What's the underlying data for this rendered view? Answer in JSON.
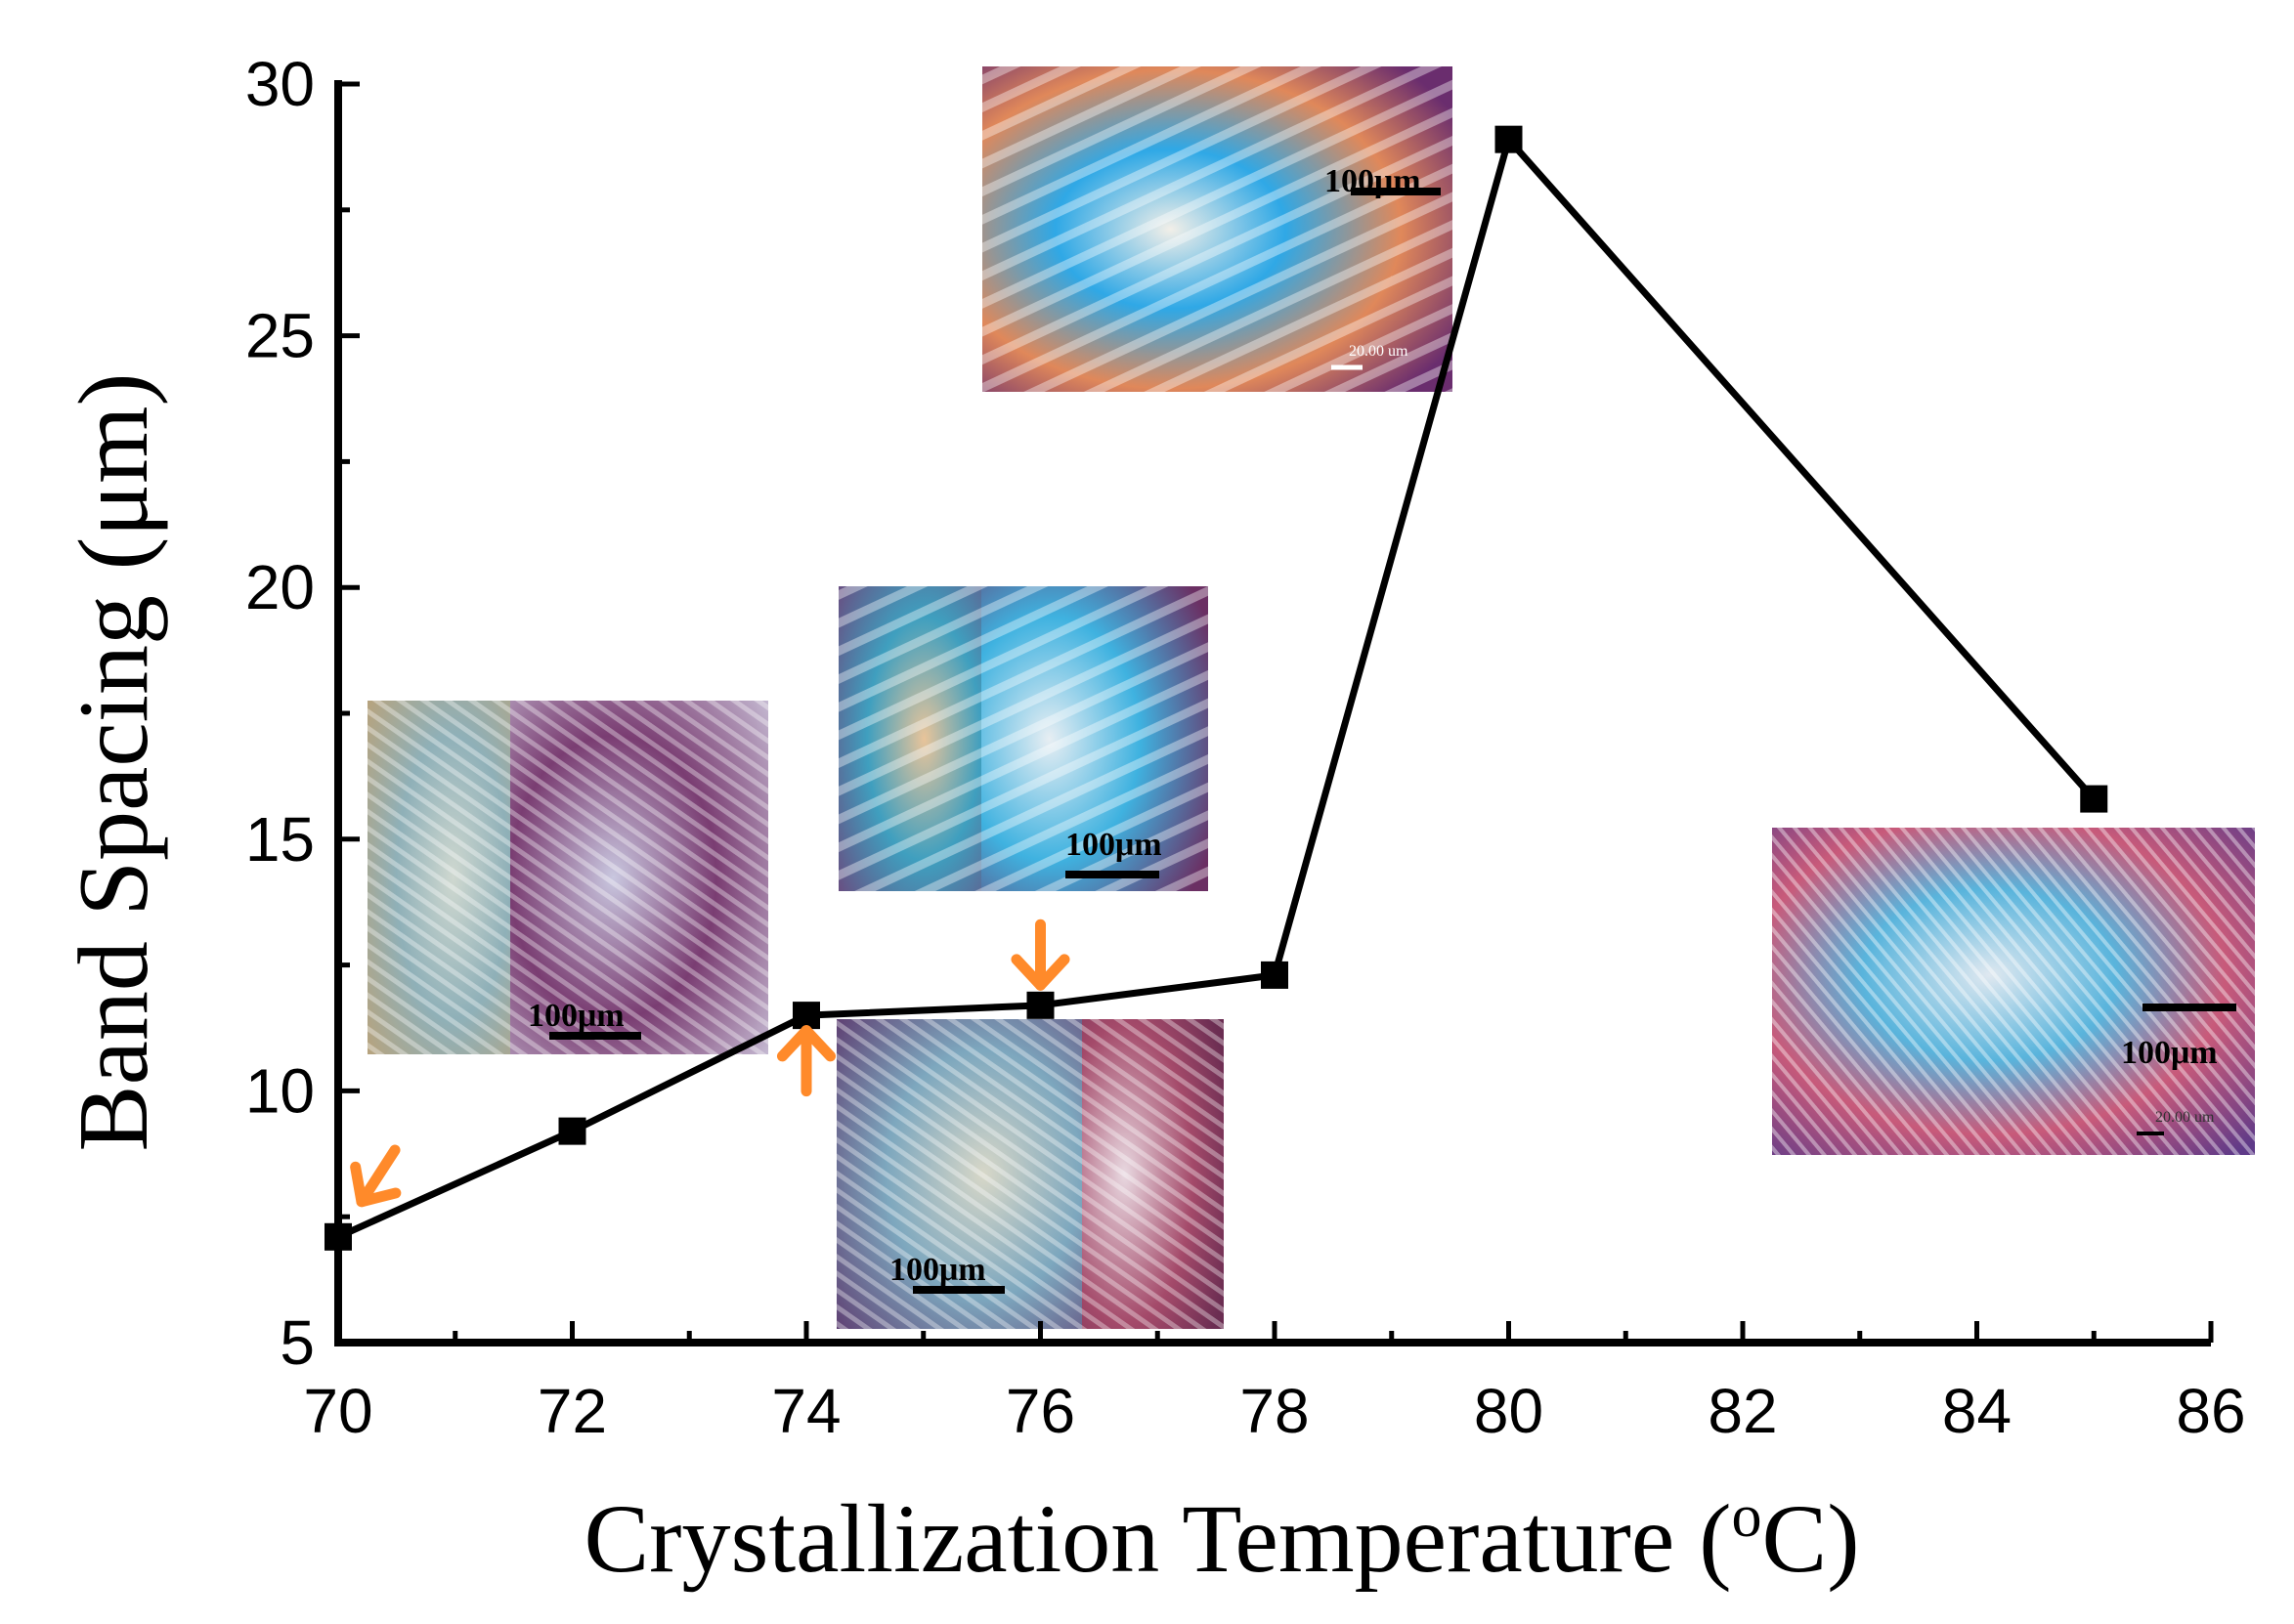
{
  "chart_data": {
    "type": "line",
    "title": "",
    "xlabel": "Crystallization Temperature (",
    "xlabel_sup": "o",
    "xlabel_end": "C)",
    "ylabel": "Band Spacing (μm)",
    "xlim": [
      70,
      86
    ],
    "ylim": [
      5,
      30
    ],
    "xticks": [
      70,
      72,
      74,
      76,
      78,
      80,
      82,
      84,
      86
    ],
    "yticks": [
      5,
      10,
      15,
      20,
      25,
      30
    ],
    "grid": false,
    "series": [
      {
        "name": "Band Spacing",
        "x": [
          70,
          72,
          74,
          76,
          78,
          80,
          85
        ],
        "y": [
          7.1,
          9.2,
          11.5,
          11.7,
          12.3,
          28.9,
          15.8
        ],
        "marker": "square",
        "color": "#000000"
      }
    ],
    "annotations": {
      "arrow_color": "#ff8a2a",
      "arrows": [
        {
          "x": 70.2,
          "y": 7.8,
          "direction": "down-left"
        },
        {
          "x": 74.0,
          "y": 11.2,
          "direction": "up"
        },
        {
          "x": 76.0,
          "y": 12.1,
          "direction": "down"
        }
      ],
      "insets": [
        {
          "name": "inset-70",
          "scale_label": "100μm"
        },
        {
          "name": "inset-74",
          "scale_label": "100μm"
        },
        {
          "name": "inset-76",
          "scale_label": "100μm"
        },
        {
          "name": "inset-80",
          "scale_label": "100μm",
          "secondary_label": "20.00 um"
        },
        {
          "name": "inset-85",
          "scale_label": "100μm",
          "secondary_label": "20.00 um"
        }
      ]
    }
  }
}
